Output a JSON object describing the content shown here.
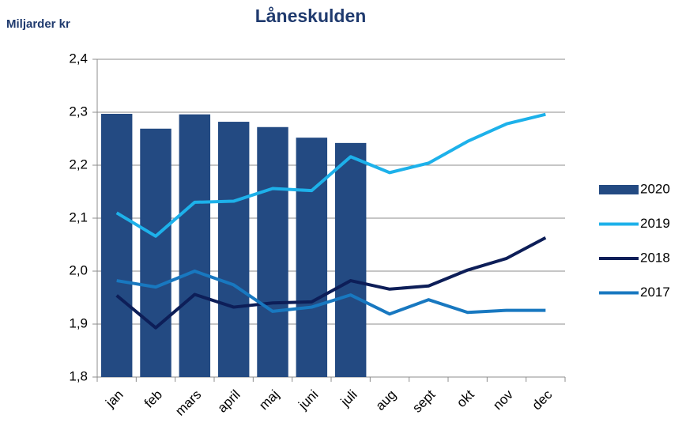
{
  "chart_data": {
    "type": "bar-line",
    "title": "Låneskulden",
    "y_axis_label": "Miljarder kr",
    "categories": [
      "jan",
      "feb",
      "mars",
      "april",
      "maj",
      "juni",
      "juli",
      "aug",
      "sept",
      "okt",
      "nov",
      "dec"
    ],
    "series": [
      {
        "name": "2020",
        "kind": "bar",
        "color": "#234a82",
        "values": [
          2.297,
          2.269,
          2.296,
          2.282,
          2.272,
          2.252,
          2.242,
          null,
          null,
          null,
          null,
          null
        ]
      },
      {
        "name": "2019",
        "kind": "line",
        "color": "#1db1ea",
        "values": [
          2.11,
          2.066,
          2.13,
          2.132,
          2.156,
          2.152,
          2.216,
          2.186,
          2.204,
          2.245,
          2.278,
          2.296
        ]
      },
      {
        "name": "2018",
        "kind": "line",
        "color": "#0d1e58",
        "values": [
          1.954,
          1.893,
          1.956,
          1.932,
          1.94,
          1.942,
          1.982,
          1.966,
          1.972,
          2.002,
          2.024,
          2.063
        ]
      },
      {
        "name": "2017",
        "kind": "line",
        "color": "#1878c0",
        "values": [
          1.982,
          1.97,
          2.0,
          1.974,
          1.924,
          1.932,
          1.955,
          1.919,
          1.946,
          1.922,
          1.926,
          1.926
        ]
      }
    ],
    "ylim": [
      1.8,
      2.4
    ],
    "yticks": [
      {
        "value": 1.8,
        "label": "1,8"
      },
      {
        "value": 1.9,
        "label": "1,9"
      },
      {
        "value": 2.0,
        "label": "2,0"
      },
      {
        "value": 2.1,
        "label": "2,1"
      },
      {
        "value": 2.2,
        "label": "2,2"
      },
      {
        "value": 2.3,
        "label": "2,3"
      },
      {
        "value": 2.4,
        "label": "2,4"
      }
    ],
    "grid": true,
    "legend": "right"
  }
}
